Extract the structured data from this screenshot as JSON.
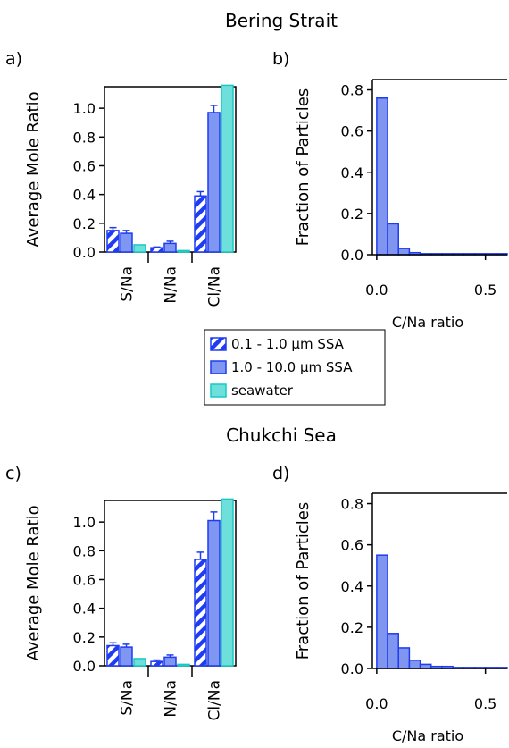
{
  "titles": {
    "top": "Bering Strait",
    "bottom": "Chukchi Sea"
  },
  "panel_labels": {
    "a": "a)",
    "b": "b)",
    "c": "c)",
    "d": "d)"
  },
  "legend": {
    "items": [
      {
        "label": "0.1 - 1.0 µm SSA",
        "style": "hatched"
      },
      {
        "label": "1.0 - 10.0 µm SSA",
        "style": "solid"
      },
      {
        "label": "seawater",
        "style": "cyan"
      }
    ]
  },
  "colors": {
    "blue_edge": "#1f3cf0",
    "blue_fill": "#7f96f2",
    "cyan_fill": "#6ee0dc",
    "cyan_edge": "#19c8c4",
    "hist_fill": "#8095f0"
  },
  "chart_data": [
    {
      "panel": "a)",
      "type": "bar",
      "ylabel": "Average Mole Ratio",
      "categories": [
        "S/Na",
        "N/Na",
        "Cl/Na"
      ],
      "ylim": [
        0,
        1.15
      ],
      "yticks": [
        "0.0",
        "0.2",
        "0.4",
        "0.6",
        "0.8",
        "1.0"
      ],
      "series": [
        {
          "name": "0.1 - 1.0 µm SSA",
          "values": [
            0.15,
            0.03,
            0.39
          ],
          "errors": [
            0.02,
            0.005,
            0.03
          ]
        },
        {
          "name": "1.0 - 10.0 µm SSA",
          "values": [
            0.13,
            0.06,
            0.97
          ],
          "errors": [
            0.02,
            0.015,
            0.05
          ]
        },
        {
          "name": "seawater",
          "values": [
            0.05,
            0.01,
            1.16
          ]
        }
      ]
    },
    {
      "panel": "b)",
      "type": "bar",
      "ylabel": "Fraction of Particles",
      "xlabel": "C/Na ratio",
      "bin_width": 0.05,
      "x": [
        0.0,
        0.05,
        0.1,
        0.15,
        0.2,
        0.25,
        0.3,
        0.35,
        0.4,
        0.45,
        0.5,
        0.55
      ],
      "values": [
        0.76,
        0.15,
        0.03,
        0.01,
        0.005,
        0.005,
        0.005,
        0.005,
        0.005,
        0.005,
        0.005,
        0.005
      ],
      "xlim": [
        -0.02,
        0.6
      ],
      "ylim": [
        0,
        0.85
      ],
      "xticks": [
        "0.0",
        "0.5"
      ],
      "yticks": [
        "0.0",
        "0.2",
        "0.4",
        "0.6",
        "0.8"
      ]
    },
    {
      "panel": "c)",
      "type": "bar",
      "ylabel": "Average Mole Ratio",
      "categories": [
        "S/Na",
        "N/Na",
        "Cl/Na"
      ],
      "ylim": [
        0,
        1.15
      ],
      "yticks": [
        "0.0",
        "0.2",
        "0.4",
        "0.6",
        "0.8",
        "1.0"
      ],
      "series": [
        {
          "name": "0.1 - 1.0 µm SSA",
          "values": [
            0.14,
            0.03,
            0.74
          ],
          "errors": [
            0.02,
            0.01,
            0.05
          ]
        },
        {
          "name": "1.0 - 10.0 µm SSA",
          "values": [
            0.13,
            0.06,
            1.01
          ],
          "errors": [
            0.02,
            0.015,
            0.06
          ]
        },
        {
          "name": "seawater",
          "values": [
            0.05,
            0.01,
            1.16
          ]
        }
      ]
    },
    {
      "panel": "d)",
      "type": "bar",
      "ylabel": "Fraction of Particles",
      "xlabel": "C/Na ratio",
      "bin_width": 0.05,
      "x": [
        0.0,
        0.05,
        0.1,
        0.15,
        0.2,
        0.25,
        0.3,
        0.35,
        0.4,
        0.45,
        0.5,
        0.55
      ],
      "values": [
        0.55,
        0.17,
        0.1,
        0.04,
        0.02,
        0.01,
        0.01,
        0.005,
        0.005,
        0.005,
        0.005,
        0.005
      ],
      "xlim": [
        -0.02,
        0.6
      ],
      "ylim": [
        0,
        0.85
      ],
      "xticks": [
        "0.0",
        "0.5"
      ],
      "yticks": [
        "0.0",
        "0.2",
        "0.4",
        "0.6",
        "0.8"
      ]
    }
  ]
}
